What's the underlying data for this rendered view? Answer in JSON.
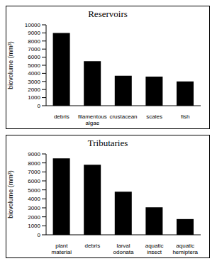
{
  "chart_data": [
    {
      "type": "bar",
      "title": "Reservoirs",
      "y_label": "biovolume (mm³)",
      "categories": [
        "debris",
        "filamentous algae",
        "crustacean",
        "scales",
        "fish"
      ],
      "values": [
        9000,
        5500,
        3700,
        3600,
        3000
      ],
      "color": "#000000",
      "ylim": [
        0,
        10000
      ],
      "yticks": [
        0,
        1000,
        2000,
        3000,
        4000,
        5000,
        6000,
        7000,
        8000,
        9000,
        10000
      ],
      "grid": false
    },
    {
      "type": "bar",
      "title": "Tributaries",
      "y_label": "biovolume (mm³)",
      "categories": [
        "plant material",
        "debris",
        "larval odonata",
        "aquatic insect",
        "aquatic hemiptera"
      ],
      "values": [
        8500,
        7800,
        4800,
        3050,
        1750
      ],
      "color": "#000000",
      "ylim": [
        0,
        9000
      ],
      "yticks": [
        0,
        1000,
        2000,
        3000,
        4000,
        5000,
        6000,
        7000,
        8000,
        9000
      ],
      "grid": false
    }
  ]
}
